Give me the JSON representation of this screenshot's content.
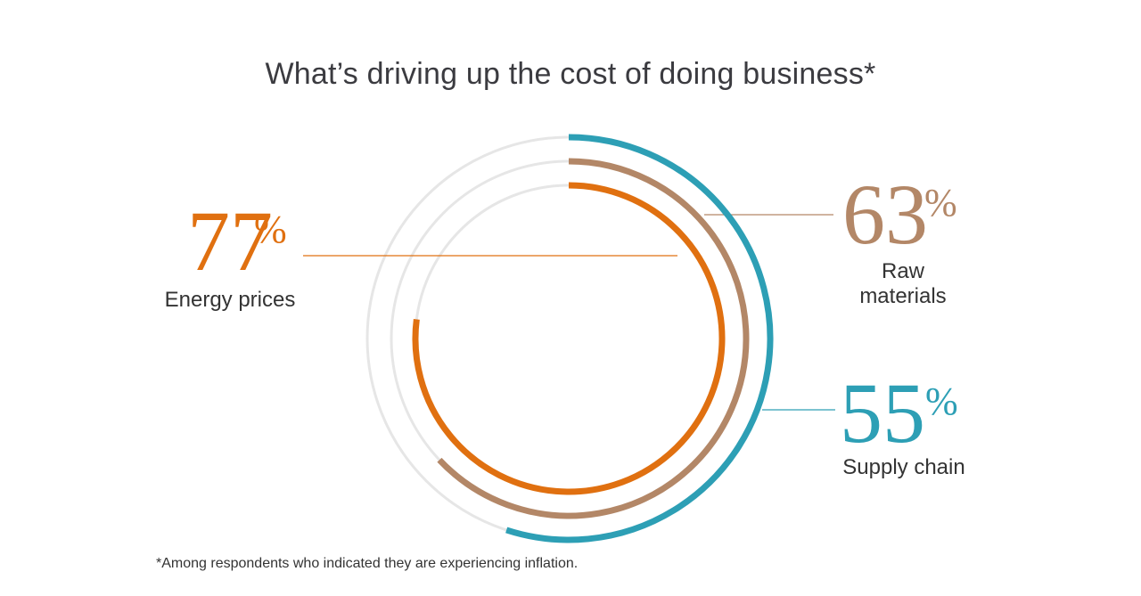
{
  "title": "What’s driving up the cost of doing business*",
  "footnote": "*Among respondents who indicated they are experiencing inflation.",
  "chart_data": {
    "type": "radial-bar",
    "title": "What’s driving up the cost of doing business*",
    "unit": "%",
    "series": [
      {
        "name": "Energy prices",
        "label_lines": [
          "Energy prices"
        ],
        "value": 77,
        "color": "#e07010"
      },
      {
        "name": "Raw materials",
        "label_lines": [
          "Raw",
          "materials"
        ],
        "value": 63,
        "color": "#b38767"
      },
      {
        "name": "Supply chain",
        "label_lines": [
          "Supply chain"
        ],
        "value": 55,
        "color": "#2d9fb5"
      }
    ],
    "track_color": "#e6e6e6",
    "max": 100
  }
}
